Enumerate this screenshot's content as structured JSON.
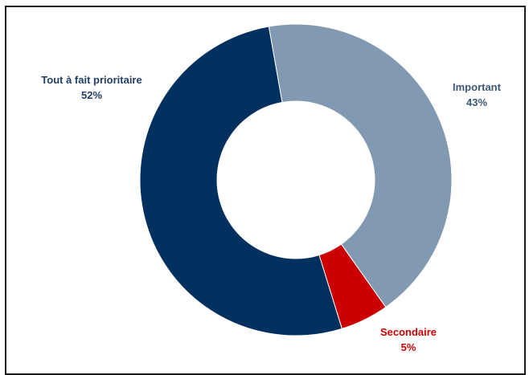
{
  "chart_data": {
    "type": "pie",
    "variant": "donut",
    "title": "",
    "slices": [
      {
        "label": "Important",
        "value": 43,
        "display": "43%",
        "color": "#8299b2",
        "label_color": "#3b5876"
      },
      {
        "label": "Secondaire",
        "value": 5,
        "display": "5%",
        "color": "#cc0000",
        "label_color": "#cc0000"
      },
      {
        "label": "Tout à fait prioritaire",
        "value": 52,
        "display": "52%",
        "color": "#00305e",
        "label_color": "#213e64"
      }
    ],
    "legend": "none"
  }
}
